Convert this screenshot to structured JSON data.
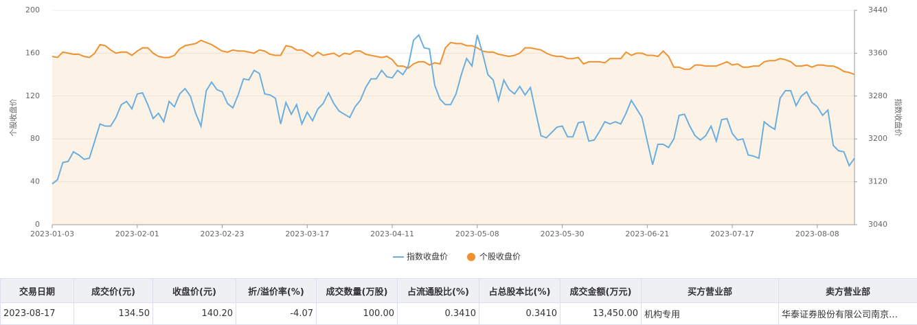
{
  "chart_data": {
    "type": "line",
    "ylabel": "个股收盘价",
    "y2label": "指数收盘价",
    "categories": [
      "2023-01-03",
      null,
      null,
      null,
      null,
      null,
      null,
      null,
      null,
      null,
      null,
      null,
      null,
      null,
      null,
      null,
      "2023-02-01",
      null,
      null,
      null,
      null,
      null,
      null,
      null,
      null,
      null,
      null,
      null,
      null,
      null,
      null,
      null,
      "2023-02-23",
      null,
      null,
      null,
      null,
      null,
      null,
      null,
      null,
      null,
      null,
      null,
      null,
      null,
      null,
      null,
      "2023-03-17",
      null,
      null,
      null,
      null,
      null,
      null,
      null,
      null,
      null,
      null,
      null,
      null,
      null,
      null,
      null,
      "2023-04-11",
      null,
      null,
      null,
      null,
      null,
      null,
      null,
      null,
      null,
      null,
      null,
      null,
      null,
      null,
      null,
      "2023-05-08",
      null,
      null,
      null,
      null,
      null,
      null,
      null,
      null,
      null,
      null,
      null,
      null,
      null,
      null,
      null,
      "2023-05-30",
      null,
      null,
      null,
      null,
      null,
      null,
      null,
      null,
      null,
      null,
      null,
      null,
      null,
      null,
      null,
      "2023-06-21",
      null,
      null,
      null,
      null,
      null,
      null,
      null,
      null,
      null,
      null,
      null,
      null,
      null,
      null,
      null,
      "2023-07-17",
      null,
      null,
      null,
      null,
      null,
      null,
      null,
      null,
      null,
      null,
      null,
      null,
      null,
      null,
      null,
      "2023-08-08",
      null,
      null,
      null,
      null,
      null,
      null,
      null
    ],
    "series": [
      {
        "name": "指数收盘价",
        "color": "#6aaee0",
        "axis": "y2",
        "values": [
          3116,
          3124,
          3156,
          3158,
          3176,
          3170,
          3162,
          3164,
          3196,
          3228,
          3224,
          3224,
          3240,
          3264,
          3270,
          3256,
          3284,
          3286,
          3264,
          3238,
          3248,
          3232,
          3270,
          3260,
          3284,
          3294,
          3280,
          3248,
          3224,
          3290,
          3306,
          3292,
          3288,
          3266,
          3258,
          3282,
          3312,
          3310,
          3328,
          3322,
          3284,
          3282,
          3276,
          3228,
          3268,
          3246,
          3264,
          3228,
          3250,
          3234,
          3256,
          3266,
          3286,
          3266,
          3252,
          3246,
          3240,
          3260,
          3272,
          3296,
          3312,
          3312,
          3328,
          3316,
          3314,
          3328,
          3320,
          3336,
          3384,
          3394,
          3370,
          3368,
          3300,
          3274,
          3264,
          3264,
          3284,
          3320,
          3350,
          3336,
          3394,
          3360,
          3320,
          3310,
          3272,
          3310,
          3292,
          3284,
          3298,
          3282,
          3296,
          3250,
          3206,
          3202,
          3212,
          3222,
          3224,
          3204,
          3204,
          3230,
          3232,
          3196,
          3198,
          3214,
          3232,
          3228,
          3232,
          3228,
          3248,
          3272,
          3256,
          3240,
          3196,
          3152,
          3190,
          3190,
          3184,
          3200,
          3244,
          3246,
          3224,
          3206,
          3198,
          3206,
          3224,
          3196,
          3236,
          3238,
          3210,
          3198,
          3200,
          3170,
          3168,
          3164,
          3232,
          3224,
          3218,
          3276,
          3290,
          3290,
          3262,
          3280,
          3288,
          3268,
          3260,
          3244,
          3254,
          3188,
          3178,
          3176,
          3150,
          3164
        ]
      },
      {
        "name": "个股收盘价",
        "color": "#f0902e",
        "values": [
          157,
          156,
          161,
          160,
          159,
          159,
          157,
          156,
          160,
          168,
          167,
          163,
          160,
          161,
          161,
          158,
          162,
          165,
          165,
          160,
          157,
          156,
          156,
          158,
          164,
          167,
          168,
          169,
          172,
          170,
          168,
          165,
          162,
          161,
          163,
          162,
          162,
          161,
          160,
          163,
          162,
          159,
          158,
          158,
          167,
          166,
          163,
          163,
          160,
          157,
          161,
          158,
          159,
          160,
          157,
          160,
          159,
          162,
          162,
          159,
          158,
          157,
          156,
          157,
          154,
          148,
          148,
          146,
          150,
          152,
          152,
          149,
          151,
          150,
          165,
          170,
          169,
          169,
          167,
          167,
          165,
          162,
          161,
          161,
          159,
          158,
          157,
          158,
          160,
          165,
          165,
          164,
          163,
          160,
          158,
          157,
          157,
          155,
          155,
          156,
          150,
          152,
          152,
          152,
          151,
          155,
          155,
          155,
          161,
          158,
          160,
          160,
          158,
          158,
          157,
          162,
          157,
          147,
          147,
          145,
          145,
          149,
          149,
          148,
          148,
          148,
          150,
          152,
          149,
          150,
          147,
          147,
          148,
          148,
          152,
          153,
          153,
          155,
          154,
          152,
          148,
          148,
          149,
          147,
          149,
          149,
          148,
          148,
          146,
          143,
          142,
          140.2
        ]
      }
    ],
    "ylim": [
      0,
      200
    ],
    "yticks": [
      0,
      40,
      80,
      120,
      160,
      200
    ],
    "y2lim": [
      3040,
      3440
    ],
    "y2ticks": [
      3040,
      3120,
      3200,
      3280,
      3360,
      3440
    ],
    "grid": true,
    "area": true
  },
  "table": {
    "headers": [
      "交易日期",
      "成交价(元)",
      "收盘价(元)",
      "折/溢价率(%)",
      "成交数量(万股)",
      "占流通股比(%)",
      "占总股本比(%)",
      "成交金额(万元)",
      "买方营业部",
      "卖方营业部"
    ],
    "rows": [
      [
        "2023-08-17",
        "134.50",
        "140.20",
        "-4.07",
        "100.00",
        "0.3410",
        "0.3410",
        "13,450.00",
        "机构专用",
        "华泰证券股份有限公司南京…"
      ]
    ]
  }
}
